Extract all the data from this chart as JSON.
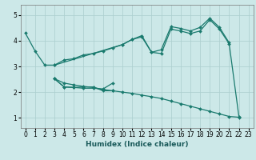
{
  "xlabel": "Humidex (Indice chaleur)",
  "bg_color": "#cce8e8",
  "line_color": "#1a7a6e",
  "grid_color": "#aacece",
  "xlim": [
    -0.5,
    23.5
  ],
  "ylim": [
    0.6,
    5.4
  ],
  "xticks": [
    0,
    1,
    2,
    3,
    4,
    5,
    6,
    7,
    8,
    9,
    10,
    11,
    12,
    13,
    14,
    15,
    16,
    17,
    18,
    19,
    20,
    21,
    22,
    23
  ],
  "yticks": [
    1,
    2,
    3,
    4,
    5
  ],
  "lines": [
    {
      "x": [
        0,
        1,
        2,
        3,
        10,
        11,
        12,
        13,
        14,
        15,
        16,
        17,
        18,
        19,
        20,
        21,
        22
      ],
      "y": [
        4.3,
        3.6,
        3.05,
        3.05,
        3.85,
        4.05,
        4.2,
        3.55,
        3.5,
        4.45,
        4.38,
        4.28,
        4.38,
        4.82,
        4.45,
        3.88,
        1.05
      ]
    },
    {
      "x": [
        3,
        4,
        5,
        6,
        7,
        8,
        9,
        10,
        11,
        12,
        13,
        14,
        15,
        16,
        17,
        18,
        19,
        20,
        21
      ],
      "y": [
        3.05,
        3.25,
        3.3,
        3.45,
        3.5,
        3.6,
        3.72,
        3.85,
        4.05,
        4.15,
        3.55,
        3.65,
        4.55,
        4.48,
        4.38,
        4.52,
        4.88,
        4.52,
        3.92
      ]
    },
    {
      "x": [
        3,
        4,
        5,
        6,
        7,
        8,
        9
      ],
      "y": [
        2.52,
        2.2,
        2.18,
        2.15,
        2.15,
        2.12,
        2.35
      ]
    },
    {
      "x": [
        3,
        4,
        5,
        6,
        7,
        8,
        9
      ],
      "y": [
        2.52,
        2.2,
        2.18,
        2.2,
        2.2,
        2.05,
        2.05
      ]
    },
    {
      "x": [
        3,
        4,
        5,
        6,
        7,
        8,
        9,
        10,
        11,
        12,
        13,
        14,
        15,
        16,
        17,
        18,
        19,
        20,
        21,
        22
      ],
      "y": [
        2.52,
        2.35,
        2.28,
        2.22,
        2.18,
        2.1,
        2.05,
        2.0,
        1.95,
        1.88,
        1.82,
        1.75,
        1.65,
        1.55,
        1.45,
        1.35,
        1.25,
        1.15,
        1.05,
        1.02
      ]
    }
  ]
}
